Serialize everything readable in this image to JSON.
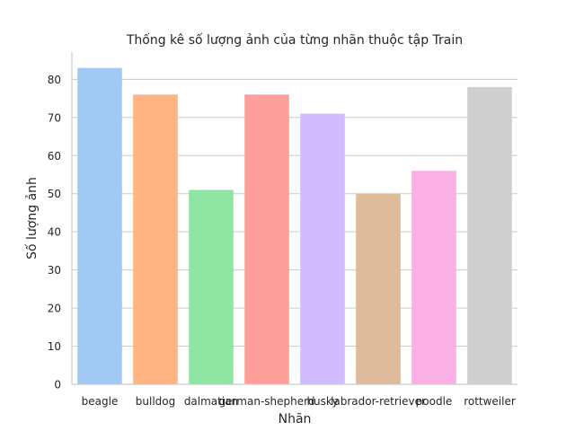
{
  "chart_data": {
    "type": "bar",
    "title": "Thống kê số lượng ảnh của từng nhãn thuộc tập Train",
    "xlabel": "Nhãn",
    "ylabel": "Số lượng ảnh",
    "categories": [
      "beagle",
      "bulldog",
      "dalmatian",
      "german-shepherd",
      "husky",
      "labrador-retriever",
      "poodle",
      "rottweiler"
    ],
    "values": [
      83,
      76,
      51,
      76,
      71,
      50,
      56,
      78
    ],
    "colors": [
      "#a1c9f4",
      "#ffb482",
      "#8de5a1",
      "#ff9f9b",
      "#d0bbff",
      "#debb9b",
      "#fab0e4",
      "#cfcfcf"
    ],
    "yticks": [
      "0",
      "10",
      "20",
      "30",
      "40",
      "50",
      "60",
      "70",
      "80"
    ],
    "ylim": [
      0,
      87.15
    ],
    "grid": "horizontal"
  }
}
